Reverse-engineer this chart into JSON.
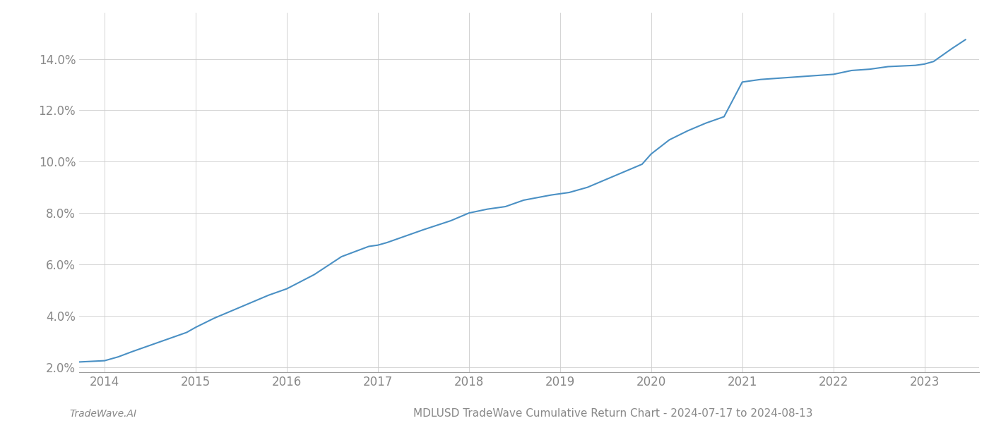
{
  "title": "MDLUSD TradeWave Cumulative Return Chart - 2024-07-17 to 2024-08-13",
  "watermark": "TradeWave.AI",
  "line_color": "#4a90c4",
  "background_color": "#ffffff",
  "grid_color": "#cccccc",
  "x_years": [
    2014,
    2015,
    2016,
    2017,
    2018,
    2019,
    2020,
    2021,
    2022,
    2023
  ],
  "x_values": [
    2013.72,
    2014.0,
    2014.15,
    2014.3,
    2014.5,
    2014.7,
    2014.9,
    2015.0,
    2015.2,
    2015.5,
    2015.8,
    2016.0,
    2016.3,
    2016.6,
    2016.9,
    2017.0,
    2017.1,
    2017.3,
    2017.5,
    2017.8,
    2018.0,
    2018.2,
    2018.4,
    2018.6,
    2018.9,
    2019.0,
    2019.1,
    2019.3,
    2019.5,
    2019.7,
    2019.9,
    2020.0,
    2020.2,
    2020.4,
    2020.6,
    2020.8,
    2021.0,
    2021.1,
    2021.2,
    2021.4,
    2021.6,
    2021.8,
    2022.0,
    2022.2,
    2022.4,
    2022.6,
    2022.9,
    2023.0,
    2023.1,
    2023.3,
    2023.45
  ],
  "y_values": [
    2.2,
    2.25,
    2.4,
    2.6,
    2.85,
    3.1,
    3.35,
    3.55,
    3.9,
    4.35,
    4.8,
    5.05,
    5.6,
    6.3,
    6.7,
    6.75,
    6.85,
    7.1,
    7.35,
    7.7,
    8.0,
    8.15,
    8.25,
    8.5,
    8.7,
    8.75,
    8.8,
    9.0,
    9.3,
    9.6,
    9.9,
    10.3,
    10.85,
    11.2,
    11.5,
    11.75,
    13.1,
    13.15,
    13.2,
    13.25,
    13.3,
    13.35,
    13.4,
    13.55,
    13.6,
    13.7,
    13.75,
    13.8,
    13.9,
    14.4,
    14.75
  ],
  "ylim": [
    1.8,
    15.8
  ],
  "yticks": [
    2.0,
    4.0,
    6.0,
    8.0,
    10.0,
    12.0,
    14.0
  ],
  "xlabel_fontsize": 12,
  "ylabel_fontsize": 12,
  "title_fontsize": 11,
  "tick_label_color": "#888888",
  "axis_color": "#999999",
  "line_width": 1.5
}
